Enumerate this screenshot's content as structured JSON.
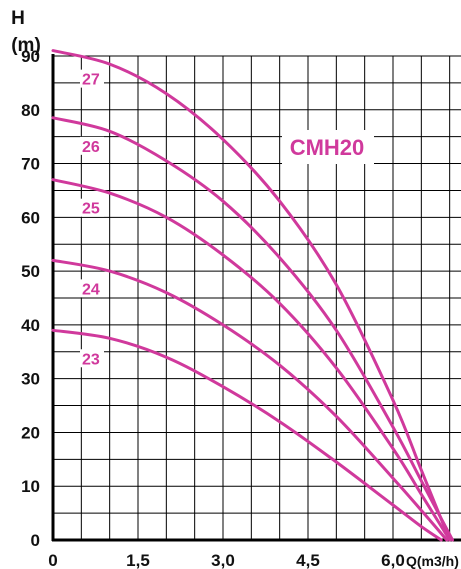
{
  "chart_data": {
    "type": "line",
    "title": "CMH20",
    "ylabel_line1": "H",
    "ylabel_line2": "(m)",
    "xlabel": "Q(m3/h)",
    "xlim": [
      0,
      7.2
    ],
    "ylim": [
      0,
      90
    ],
    "x_ticks": [
      "0",
      "1,5",
      "3,0",
      "4,5",
      "6,0"
    ],
    "x_tick_values": [
      0,
      1.5,
      3.0,
      4.5,
      6.0
    ],
    "y_ticks": [
      "0",
      "10",
      "20",
      "30",
      "40",
      "50",
      "60",
      "70",
      "80",
      "90"
    ],
    "y_tick_values": [
      0,
      10,
      20,
      30,
      40,
      50,
      60,
      70,
      80,
      90
    ],
    "grid": true,
    "grid_minor_x_step": 0.5,
    "grid_minor_y_step": 5,
    "line_color": "#d0399c",
    "series": [
      {
        "name": "27",
        "x": [
          0,
          1.0,
          2.0,
          3.0,
          4.0,
          5.0,
          6.0,
          6.5,
          7.0
        ],
        "y": [
          91,
          88.5,
          83,
          74.5,
          63,
          47.5,
          26,
          13,
          0
        ]
      },
      {
        "name": "26",
        "x": [
          0,
          1.0,
          2.0,
          3.0,
          4.0,
          5.0,
          6.0,
          6.5,
          7.05
        ],
        "y": [
          78.5,
          76,
          70.5,
          63,
          52.5,
          39,
          21,
          11,
          0
        ]
      },
      {
        "name": "25",
        "x": [
          0,
          1.0,
          2.0,
          3.0,
          4.0,
          5.0,
          6.0,
          6.5,
          7.0
        ],
        "y": [
          67,
          64.5,
          60,
          53,
          44,
          32,
          17,
          8.5,
          0
        ]
      },
      {
        "name": "24",
        "x": [
          0,
          1.0,
          2.0,
          3.0,
          4.0,
          5.0,
          6.0,
          6.5,
          6.95
        ],
        "y": [
          52,
          50,
          46,
          40,
          32.5,
          23,
          11.5,
          5.5,
          0
        ]
      },
      {
        "name": "23",
        "x": [
          0,
          1.0,
          2.0,
          3.0,
          4.0,
          5.0,
          6.0,
          6.5,
          6.85
        ],
        "y": [
          39,
          37.5,
          34,
          28.5,
          22,
          14.5,
          6.5,
          2.5,
          0
        ]
      }
    ]
  }
}
